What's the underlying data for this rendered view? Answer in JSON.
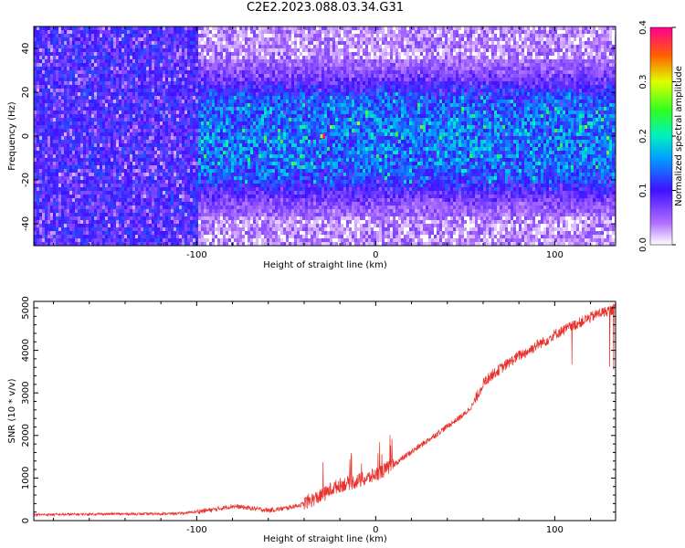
{
  "title": "C2E2.2023.088.03.34.G31",
  "chart_data": [
    {
      "type": "heatmap",
      "xlabel": "Height of straight line (km)",
      "ylabel": "Frequency (Hz)",
      "xlim": [
        -191,
        134
      ],
      "ylim": [
        -50,
        50
      ],
      "xticks": [
        -100,
        0,
        100
      ],
      "yticks": [
        -40,
        -20,
        0,
        20,
        40
      ],
      "colorbar": {
        "label": "Normalized spectral amplitude",
        "range": [
          0.0,
          0.4
        ],
        "ticks": [
          0.0,
          0.1,
          0.2,
          0.3,
          0.4
        ]
      },
      "description_values": {
        "amplitude_below_-100km": "0.05-0.12 across full band",
        "amplitude_above_-100km_core": "0.10-0.20 within -25..25 Hz",
        "peak_amplitude": 0.4,
        "peak_location": {
          "x": -29,
          "y": 0
        }
      }
    },
    {
      "type": "line",
      "xlabel": "Height of straight line (km)",
      "ylabel": "SNR (10 * v/v)",
      "xlim": [
        -191,
        134
      ],
      "ylim": [
        0,
        5150
      ],
      "xticks": [
        -100,
        0,
        100
      ],
      "yticks": [
        0,
        1000,
        2000,
        3000,
        4000,
        5000
      ],
      "series": [
        {
          "color": "#e8302a",
          "x": [
            -191,
            -170,
            -150,
            -130,
            -110,
            -100,
            -90,
            -80,
            -70,
            -60,
            -50,
            -40,
            -30,
            -25,
            -20,
            -15,
            -10,
            -5,
            0,
            5,
            10,
            15,
            20,
            25,
            30,
            35,
            40,
            45,
            50,
            55,
            60,
            65,
            70,
            75,
            80,
            85,
            90,
            95,
            100,
            105,
            110,
            115,
            120,
            125,
            130,
            134
          ],
          "y": [
            130,
            140,
            150,
            150,
            160,
            200,
            250,
            330,
            280,
            230,
            280,
            380,
            550,
            700,
            800,
            850,
            900,
            950,
            1050,
            1150,
            1300,
            1450,
            1600,
            1750,
            1900,
            2050,
            2200,
            2350,
            2500,
            2750,
            3200,
            3400,
            3550,
            3700,
            3850,
            3950,
            4100,
            4200,
            4350,
            4450,
            4550,
            4650,
            4750,
            4850,
            4900,
            4950
          ]
        }
      ]
    }
  ]
}
